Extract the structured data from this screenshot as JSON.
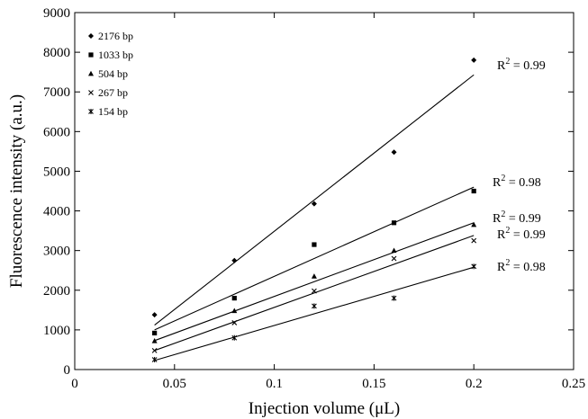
{
  "chart_data": {
    "type": "scatter",
    "xlabel": "Injection volume (μL)",
    "ylabel": "Fluorescence intensity (a.u.)",
    "xlim": [
      0,
      0.25
    ],
    "ylim": [
      0,
      9000
    ],
    "x_ticks": [
      "0",
      "0.05",
      "0.1",
      "0.15",
      "0.2",
      "0.25"
    ],
    "y_ticks": [
      "0",
      "1000",
      "2000",
      "3000",
      "4000",
      "5000",
      "6000",
      "7000",
      "8000",
      "9000"
    ],
    "legend_position": "top-left",
    "grid": false,
    "series": [
      {
        "name": "2176 bp",
        "marker": "diamond",
        "points": [
          [
            0.04,
            1380
          ],
          [
            0.08,
            2750
          ],
          [
            0.12,
            4180
          ],
          [
            0.16,
            5480
          ],
          [
            0.2,
            7800
          ]
        ],
        "fit": [
          [
            0.04,
            1120
          ],
          [
            0.2,
            7430
          ]
        ],
        "r2_label": "R² = 0.99"
      },
      {
        "name": "1033 bp",
        "marker": "square",
        "points": [
          [
            0.04,
            920
          ],
          [
            0.08,
            1800
          ],
          [
            0.12,
            3150
          ],
          [
            0.16,
            3700
          ],
          [
            0.2,
            4500
          ]
        ],
        "fit": [
          [
            0.04,
            1000
          ],
          [
            0.2,
            4600
          ]
        ],
        "r2_label": "R² = 0.98"
      },
      {
        "name": "504 bp",
        "marker": "triangle",
        "points": [
          [
            0.04,
            720
          ],
          [
            0.08,
            1480
          ],
          [
            0.12,
            2350
          ],
          [
            0.16,
            3000
          ],
          [
            0.2,
            3650
          ]
        ],
        "fit": [
          [
            0.04,
            730
          ],
          [
            0.2,
            3700
          ]
        ],
        "r2_label": "R² = 0.99"
      },
      {
        "name": "267 bp",
        "marker": "x",
        "points": [
          [
            0.04,
            480
          ],
          [
            0.08,
            1180
          ],
          [
            0.12,
            1980
          ],
          [
            0.16,
            2800
          ],
          [
            0.2,
            3250
          ]
        ],
        "fit": [
          [
            0.04,
            480
          ],
          [
            0.2,
            3380
          ]
        ],
        "r2_label": "R² = 0.99"
      },
      {
        "name": "154 bp",
        "marker": "star",
        "points": [
          [
            0.04,
            250
          ],
          [
            0.08,
            800
          ],
          [
            0.12,
            1600
          ],
          [
            0.16,
            1800
          ],
          [
            0.2,
            2600
          ]
        ],
        "fit": [
          [
            0.04,
            230
          ],
          [
            0.2,
            2580
          ]
        ],
        "r2_label": "R² = 0.98"
      }
    ]
  }
}
